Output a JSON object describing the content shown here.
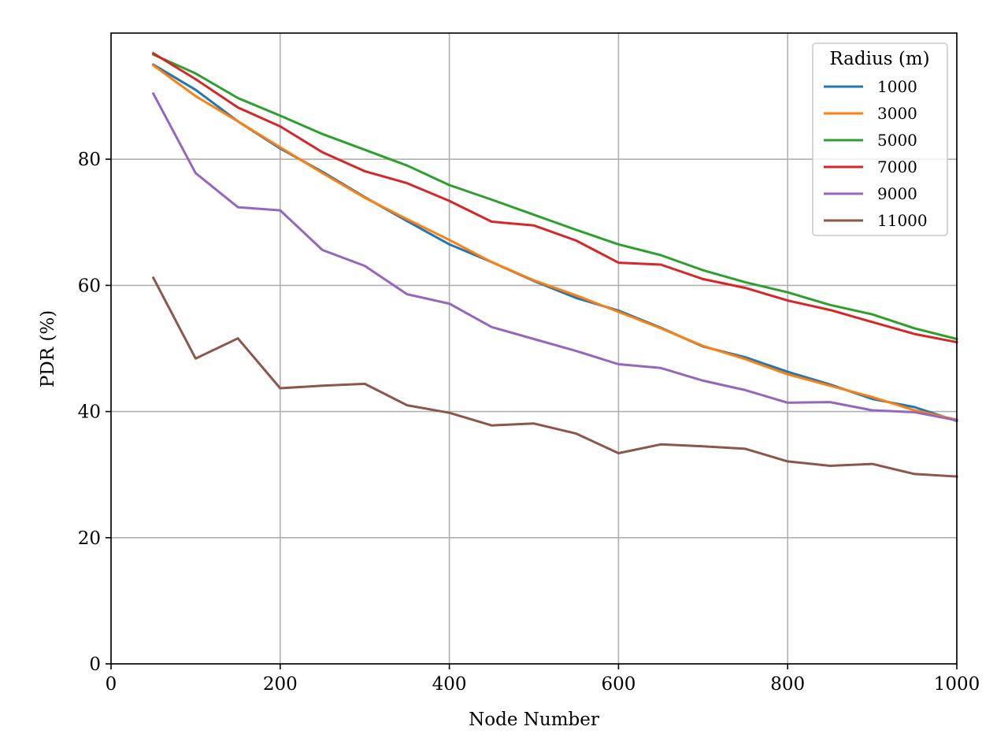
{
  "chart_data": {
    "type": "line",
    "title": "",
    "xlabel": "Node Number",
    "ylabel": "PDR (%)",
    "xlim": [
      0,
      1000
    ],
    "ylim": [
      0,
      100
    ],
    "xticks": [
      0,
      200,
      400,
      600,
      800,
      1000
    ],
    "yticks": [
      0,
      20,
      40,
      60,
      80
    ],
    "grid": true,
    "legend": {
      "title": "Radius (m)",
      "placement": "top-right"
    },
    "x": [
      50,
      100,
      150,
      200,
      250,
      300,
      350,
      400,
      450,
      500,
      550,
      600,
      650,
      700,
      750,
      800,
      850,
      900,
      950,
      1000
    ],
    "series": [
      {
        "name": "1000",
        "color": "#1f77b4",
        "values": [
          95.0,
          91.0,
          86.0,
          81.7,
          78.0,
          74.0,
          70.2,
          66.5,
          63.7,
          60.7,
          58.0,
          56.0,
          53.3,
          50.3,
          48.6,
          46.3,
          44.3,
          42.0,
          40.7,
          38.5
        ]
      },
      {
        "name": "3000",
        "color": "#ff7f0e",
        "values": [
          94.9,
          90.0,
          86.0,
          81.9,
          77.8,
          73.9,
          70.5,
          67.2,
          63.7,
          60.8,
          58.4,
          55.8,
          53.2,
          50.4,
          48.3,
          45.9,
          44.1,
          42.3,
          40.2,
          38.7
        ]
      },
      {
        "name": "5000",
        "color": "#2ca02c",
        "values": [
          96.6,
          93.6,
          89.7,
          86.9,
          84.0,
          81.5,
          79.0,
          75.9,
          73.6,
          71.2,
          68.8,
          66.5,
          64.8,
          62.4,
          60.5,
          58.9,
          56.9,
          55.4,
          53.2,
          51.5
        ]
      },
      {
        "name": "7000",
        "color": "#d62728",
        "values": [
          96.8,
          92.7,
          88.2,
          85.2,
          81.1,
          78.1,
          76.2,
          73.4,
          70.1,
          69.5,
          67.1,
          63.6,
          63.3,
          61.0,
          59.6,
          57.6,
          56.1,
          54.2,
          52.3,
          51.0
        ]
      },
      {
        "name": "9000",
        "color": "#9467bd",
        "values": [
          90.4,
          77.8,
          72.4,
          71.9,
          65.6,
          63.1,
          58.6,
          57.1,
          53.4,
          51.5,
          49.6,
          47.5,
          46.9,
          44.9,
          43.4,
          41.4,
          41.5,
          40.2,
          39.9,
          38.6
        ]
      },
      {
        "name": "11000",
        "color": "#8c564b",
        "values": [
          61.2,
          48.4,
          51.6,
          43.7,
          44.1,
          44.4,
          41.0,
          39.8,
          37.8,
          38.1,
          36.5,
          33.4,
          34.8,
          34.5,
          34.1,
          32.1,
          31.4,
          31.7,
          30.1,
          29.7
        ]
      }
    ]
  }
}
